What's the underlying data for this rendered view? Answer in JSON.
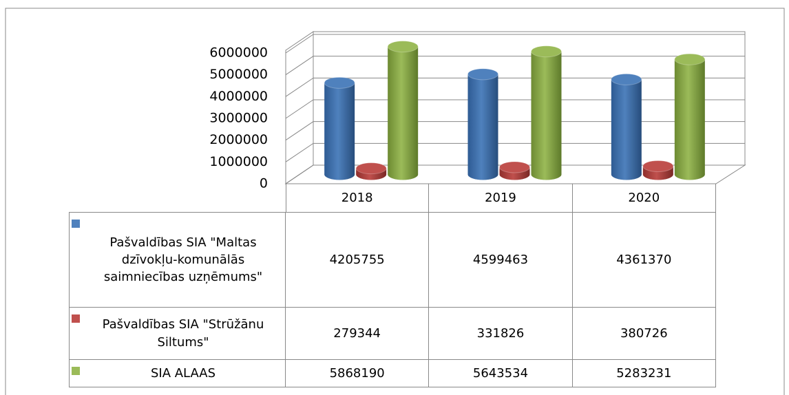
{
  "chart_data": {
    "type": "bar3d",
    "categories": [
      "2018",
      "2019",
      "2020"
    ],
    "series": [
      {
        "name": "Pašvaldības SIA \"Maltas dzīvokļu-komunālās saimniecības uzņēmums\"",
        "color": "#4f81bd",
        "values": [
          4205755,
          4599463,
          4361370
        ]
      },
      {
        "name": "Pašvaldības SIA \"Strūžānu Siltums\"",
        "color": "#c0504d",
        "values": [
          279344,
          331826,
          380726
        ]
      },
      {
        "name": "SIA ALAAS",
        "color": "#9bbb59",
        "values": [
          5868190,
          5643534,
          5283231
        ]
      }
    ],
    "ylim": [
      0,
      6000000
    ],
    "yticks": [
      0,
      1000000,
      2000000,
      3000000,
      4000000,
      5000000,
      6000000
    ],
    "grid": true
  }
}
